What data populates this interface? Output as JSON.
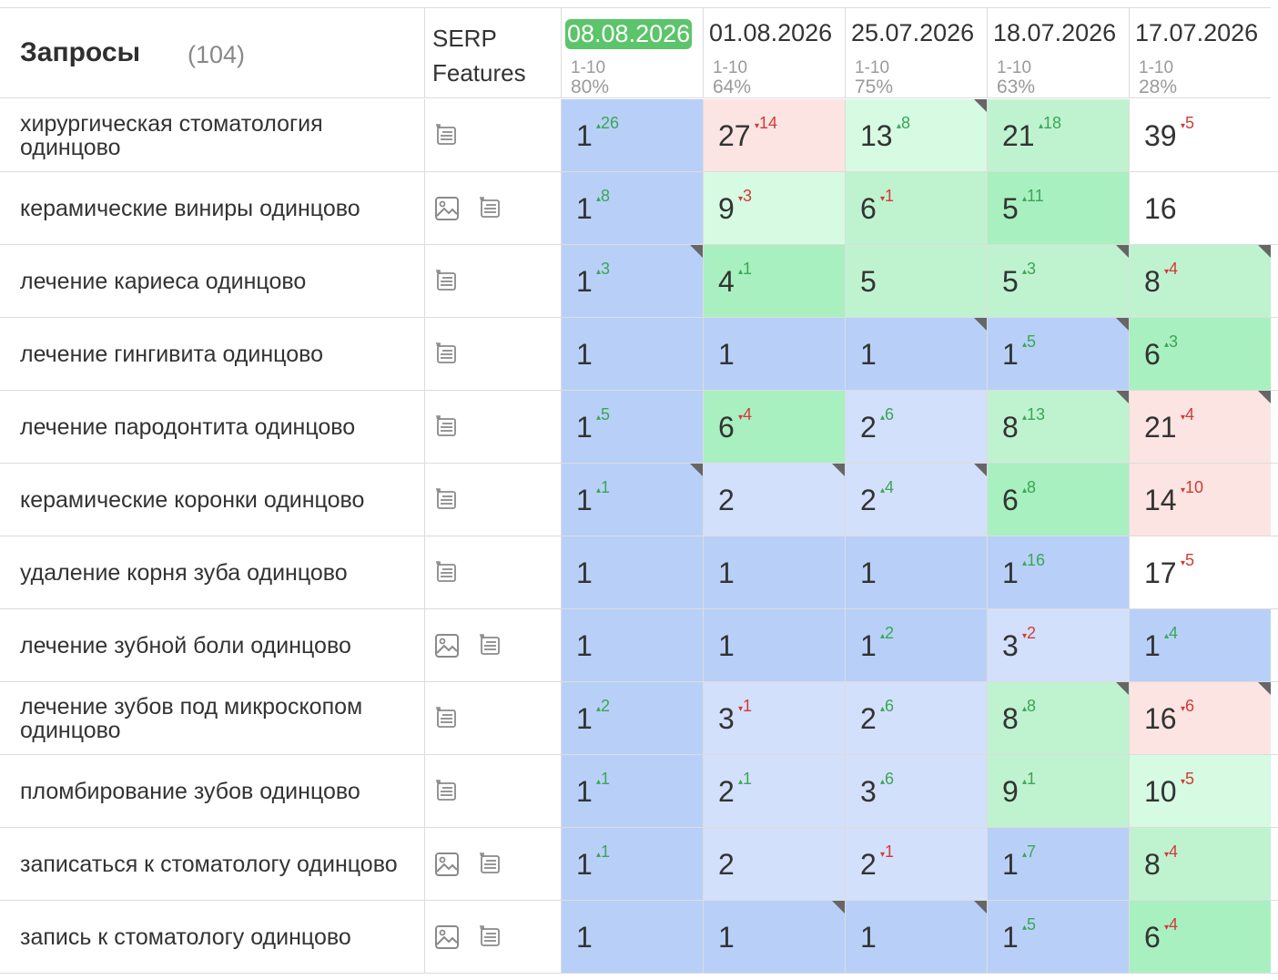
{
  "header": {
    "queries_title": "Запросы",
    "queries_count": "(104)",
    "serp_line1": "SERP",
    "serp_line2": "Features"
  },
  "dates": [
    {
      "date": "08.08.2026",
      "range": "1-10",
      "pct": "80%",
      "active": true
    },
    {
      "date": "01.08.2026",
      "range": "1-10",
      "pct": "64%"
    },
    {
      "date": "25.07.2026",
      "range": "1-10",
      "pct": "75%"
    },
    {
      "date": "18.07.2026",
      "range": "1-10",
      "pct": "63%"
    },
    {
      "date": "17.07.2026",
      "range": "1-10",
      "pct": "28%"
    }
  ],
  "colors": {
    "blue_dark": "#b8d0f8",
    "blue_light": "#d3e0fb",
    "green_dark": "#a8f0c0",
    "green_mid": "#bff3d0",
    "green_light": "#d6fae2",
    "pink": "#fbe4e1",
    "white": "#ffffff",
    "active_date": "#5cc46a"
  },
  "rows": [
    {
      "query": "хирургическая стоматология одинцово",
      "serp": [
        "list"
      ],
      "cells": [
        {
          "v": "1",
          "d": "26",
          "dir": "up",
          "bg": "blue_dark"
        },
        {
          "v": "27",
          "d": "14",
          "dir": "down",
          "bg": "pink"
        },
        {
          "v": "13",
          "d": "8",
          "dir": "up",
          "bg": "green_light",
          "corner": true
        },
        {
          "v": "21",
          "d": "18",
          "dir": "up",
          "bg": "green_mid"
        },
        {
          "v": "39",
          "d": "5",
          "dir": "down",
          "bg": "white"
        }
      ]
    },
    {
      "query": "керамические виниры одинцово",
      "serp": [
        "image",
        "list"
      ],
      "cells": [
        {
          "v": "1",
          "d": "8",
          "dir": "up",
          "bg": "blue_dark"
        },
        {
          "v": "9",
          "d": "3",
          "dir": "down",
          "bg": "green_light"
        },
        {
          "v": "6",
          "d": "1",
          "dir": "down",
          "bg": "green_mid"
        },
        {
          "v": "5",
          "d": "11",
          "dir": "up",
          "bg": "green_dark"
        },
        {
          "v": "16",
          "d": "",
          "dir": "",
          "bg": "white"
        }
      ]
    },
    {
      "query": "лечение кариеса одинцово",
      "serp": [
        "list"
      ],
      "cells": [
        {
          "v": "1",
          "d": "3",
          "dir": "up",
          "bg": "blue_dark",
          "corner": true
        },
        {
          "v": "4",
          "d": "1",
          "dir": "up",
          "bg": "green_dark"
        },
        {
          "v": "5",
          "d": "",
          "dir": "",
          "bg": "green_mid"
        },
        {
          "v": "5",
          "d": "3",
          "dir": "up",
          "bg": "green_mid",
          "corner": true
        },
        {
          "v": "8",
          "d": "4",
          "dir": "down",
          "bg": "green_mid",
          "corner": true
        }
      ]
    },
    {
      "query": "лечение гингивита одинцово",
      "serp": [
        "list"
      ],
      "cells": [
        {
          "v": "1",
          "d": "",
          "dir": "",
          "bg": "blue_dark"
        },
        {
          "v": "1",
          "d": "",
          "dir": "",
          "bg": "blue_dark"
        },
        {
          "v": "1",
          "d": "",
          "dir": "",
          "bg": "blue_dark",
          "corner": true
        },
        {
          "v": "1",
          "d": "5",
          "dir": "up",
          "bg": "blue_dark",
          "corner": true
        },
        {
          "v": "6",
          "d": "3",
          "dir": "up",
          "bg": "green_dark"
        }
      ]
    },
    {
      "query": "лечение пародонтита одинцово",
      "serp": [
        "list"
      ],
      "cells": [
        {
          "v": "1",
          "d": "5",
          "dir": "up",
          "bg": "blue_dark"
        },
        {
          "v": "6",
          "d": "4",
          "dir": "down",
          "bg": "green_dark"
        },
        {
          "v": "2",
          "d": "6",
          "dir": "up",
          "bg": "blue_light"
        },
        {
          "v": "8",
          "d": "13",
          "dir": "up",
          "bg": "green_mid",
          "corner": true
        },
        {
          "v": "21",
          "d": "4",
          "dir": "down",
          "bg": "pink",
          "corner": true
        }
      ]
    },
    {
      "query": "керамические коронки одинцово",
      "serp": [
        "list"
      ],
      "cells": [
        {
          "v": "1",
          "d": "1",
          "dir": "up",
          "bg": "blue_dark",
          "corner": true
        },
        {
          "v": "2",
          "d": "",
          "dir": "",
          "bg": "blue_light",
          "corner": true
        },
        {
          "v": "2",
          "d": "4",
          "dir": "up",
          "bg": "blue_light",
          "corner": true
        },
        {
          "v": "6",
          "d": "8",
          "dir": "up",
          "bg": "green_dark"
        },
        {
          "v": "14",
          "d": "10",
          "dir": "down",
          "bg": "pink"
        }
      ]
    },
    {
      "query": "удаление корня зуба одинцово",
      "serp": [
        "list"
      ],
      "cells": [
        {
          "v": "1",
          "d": "",
          "dir": "",
          "bg": "blue_dark"
        },
        {
          "v": "1",
          "d": "",
          "dir": "",
          "bg": "blue_dark"
        },
        {
          "v": "1",
          "d": "",
          "dir": "",
          "bg": "blue_dark"
        },
        {
          "v": "1",
          "d": "16",
          "dir": "up",
          "bg": "blue_dark"
        },
        {
          "v": "17",
          "d": "5",
          "dir": "down",
          "bg": "white"
        }
      ]
    },
    {
      "query": "лечение зубной боли одинцово",
      "serp": [
        "image",
        "list"
      ],
      "cells": [
        {
          "v": "1",
          "d": "",
          "dir": "",
          "bg": "blue_dark"
        },
        {
          "v": "1",
          "d": "",
          "dir": "",
          "bg": "blue_dark"
        },
        {
          "v": "1",
          "d": "2",
          "dir": "up",
          "bg": "blue_dark"
        },
        {
          "v": "3",
          "d": "2",
          "dir": "down",
          "bg": "blue_light"
        },
        {
          "v": "1",
          "d": "4",
          "dir": "up",
          "bg": "blue_dark"
        }
      ]
    },
    {
      "query": "лечение зубов под микроскопом одинцово",
      "serp": [
        "list"
      ],
      "cells": [
        {
          "v": "1",
          "d": "2",
          "dir": "up",
          "bg": "blue_dark"
        },
        {
          "v": "3",
          "d": "1",
          "dir": "down",
          "bg": "blue_light"
        },
        {
          "v": "2",
          "d": "6",
          "dir": "up",
          "bg": "blue_light"
        },
        {
          "v": "8",
          "d": "8",
          "dir": "up",
          "bg": "green_mid",
          "corner": true
        },
        {
          "v": "16",
          "d": "6",
          "dir": "down",
          "bg": "pink",
          "corner": true
        }
      ]
    },
    {
      "query": "пломбирование зубов одинцово",
      "serp": [
        "list"
      ],
      "cells": [
        {
          "v": "1",
          "d": "1",
          "dir": "up",
          "bg": "blue_dark"
        },
        {
          "v": "2",
          "d": "1",
          "dir": "up",
          "bg": "blue_light"
        },
        {
          "v": "3",
          "d": "6",
          "dir": "up",
          "bg": "blue_light"
        },
        {
          "v": "9",
          "d": "1",
          "dir": "up",
          "bg": "green_mid"
        },
        {
          "v": "10",
          "d": "5",
          "dir": "down",
          "bg": "green_light"
        }
      ]
    },
    {
      "query": "записаться к стоматологу одинцово",
      "serp": [
        "image",
        "list"
      ],
      "cells": [
        {
          "v": "1",
          "d": "1",
          "dir": "up",
          "bg": "blue_dark"
        },
        {
          "v": "2",
          "d": "",
          "dir": "",
          "bg": "blue_light"
        },
        {
          "v": "2",
          "d": "1",
          "dir": "down",
          "bg": "blue_light"
        },
        {
          "v": "1",
          "d": "7",
          "dir": "up",
          "bg": "blue_dark"
        },
        {
          "v": "8",
          "d": "4",
          "dir": "down",
          "bg": "green_mid"
        }
      ]
    },
    {
      "query": "запись к стоматологу одинцово",
      "serp": [
        "image",
        "list"
      ],
      "cells": [
        {
          "v": "1",
          "d": "",
          "dir": "",
          "bg": "blue_dark"
        },
        {
          "v": "1",
          "d": "",
          "dir": "",
          "bg": "blue_dark",
          "corner": true
        },
        {
          "v": "1",
          "d": "",
          "dir": "",
          "bg": "blue_dark",
          "corner": true
        },
        {
          "v": "1",
          "d": "5",
          "dir": "up",
          "bg": "blue_dark"
        },
        {
          "v": "6",
          "d": "4",
          "dir": "down",
          "bg": "green_dark"
        }
      ]
    }
  ]
}
